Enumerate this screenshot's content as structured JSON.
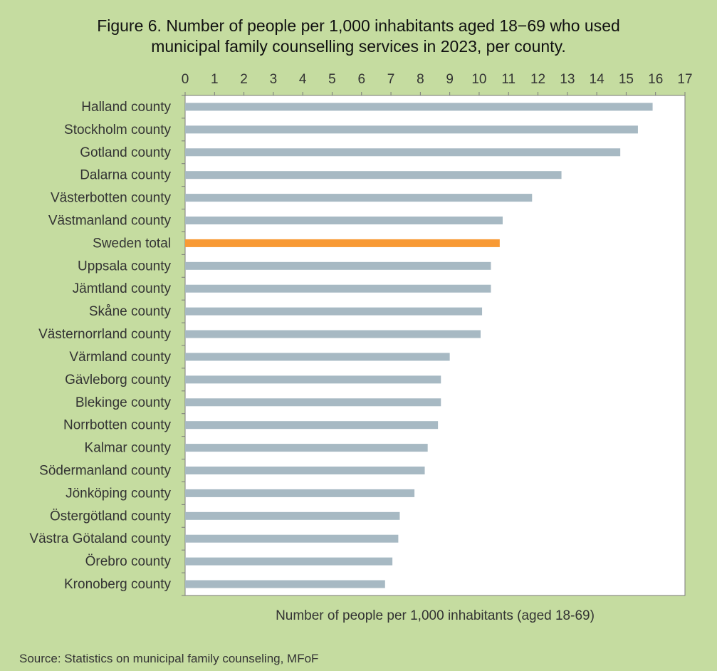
{
  "chart_data": {
    "type": "bar",
    "orientation": "horizontal",
    "title": "Figure 6. Number of people per 1,000 inhabitants aged 18−69 who used\nmunicipal family counselling services in 2023, per county.",
    "xlabel": "Number of people per 1,000 inhabitants  (aged 18-69)",
    "ylabel": "",
    "xlim": [
      0,
      17
    ],
    "xticks": [
      0,
      1,
      2,
      3,
      4,
      5,
      6,
      7,
      8,
      9,
      10,
      11,
      12,
      13,
      14,
      15,
      16,
      17
    ],
    "x_axis_position": "top",
    "grid": false,
    "categories": [
      "Halland county",
      "Stockholm county",
      "Gotland county",
      "Dalarna county",
      "Västerbotten county",
      "Västmanland county",
      "Sweden total",
      "Uppsala county",
      "Jämtland county",
      "Skåne county",
      "Västernorrland county",
      "Värmland county",
      "Gävleborg county",
      "Blekinge county",
      "Norrbotten county",
      "Kalmar county",
      "Södermanland county",
      "Jönköping county",
      "Östergötland county",
      "Västra Götaland county",
      "Örebro county",
      "Kronoberg county"
    ],
    "values": [
      15.9,
      15.4,
      14.8,
      12.8,
      11.8,
      10.8,
      10.7,
      10.4,
      10.4,
      10.1,
      10.05,
      9.0,
      8.7,
      8.7,
      8.6,
      8.25,
      8.15,
      7.8,
      7.3,
      7.25,
      7.05,
      6.8
    ],
    "bar_color": "#a7b9c3",
    "highlight_category": "Sweden total",
    "highlight_color": "#f89a35",
    "background_color": "#c5dca0",
    "plot_background_color": "#ffffff"
  },
  "source": "Source: Statistics on municipal family counseling, MFoF"
}
